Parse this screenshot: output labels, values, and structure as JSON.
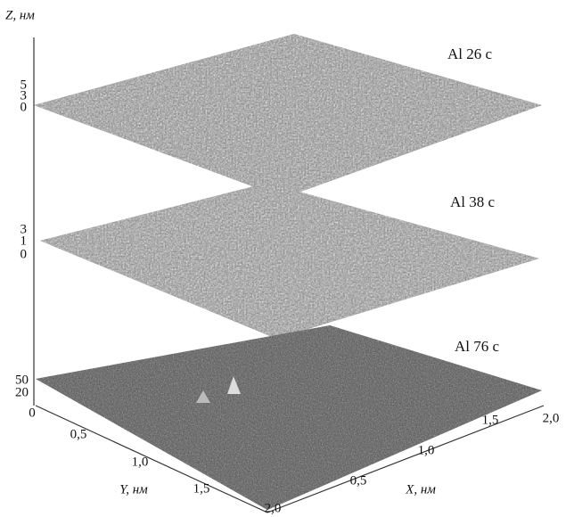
{
  "z_axis": {
    "label": "Z, нм"
  },
  "layers": [
    {
      "label": "Al 26 с",
      "z_ticks": [
        "5",
        "3",
        "0"
      ]
    },
    {
      "label": "Al 38 с",
      "z_ticks": [
        "3",
        "1",
        "0"
      ]
    },
    {
      "label": "Al 76 с",
      "z_ticks": [
        "50",
        "20"
      ]
    }
  ],
  "y_axis": {
    "label": "Y, нм",
    "ticks": [
      "0",
      "0,5",
      "1,0",
      "1,5",
      "2,0"
    ]
  },
  "x_axis": {
    "label": "X, нм",
    "ticks": [
      "0,5",
      "1,0",
      "1,5",
      "2,0"
    ]
  }
}
